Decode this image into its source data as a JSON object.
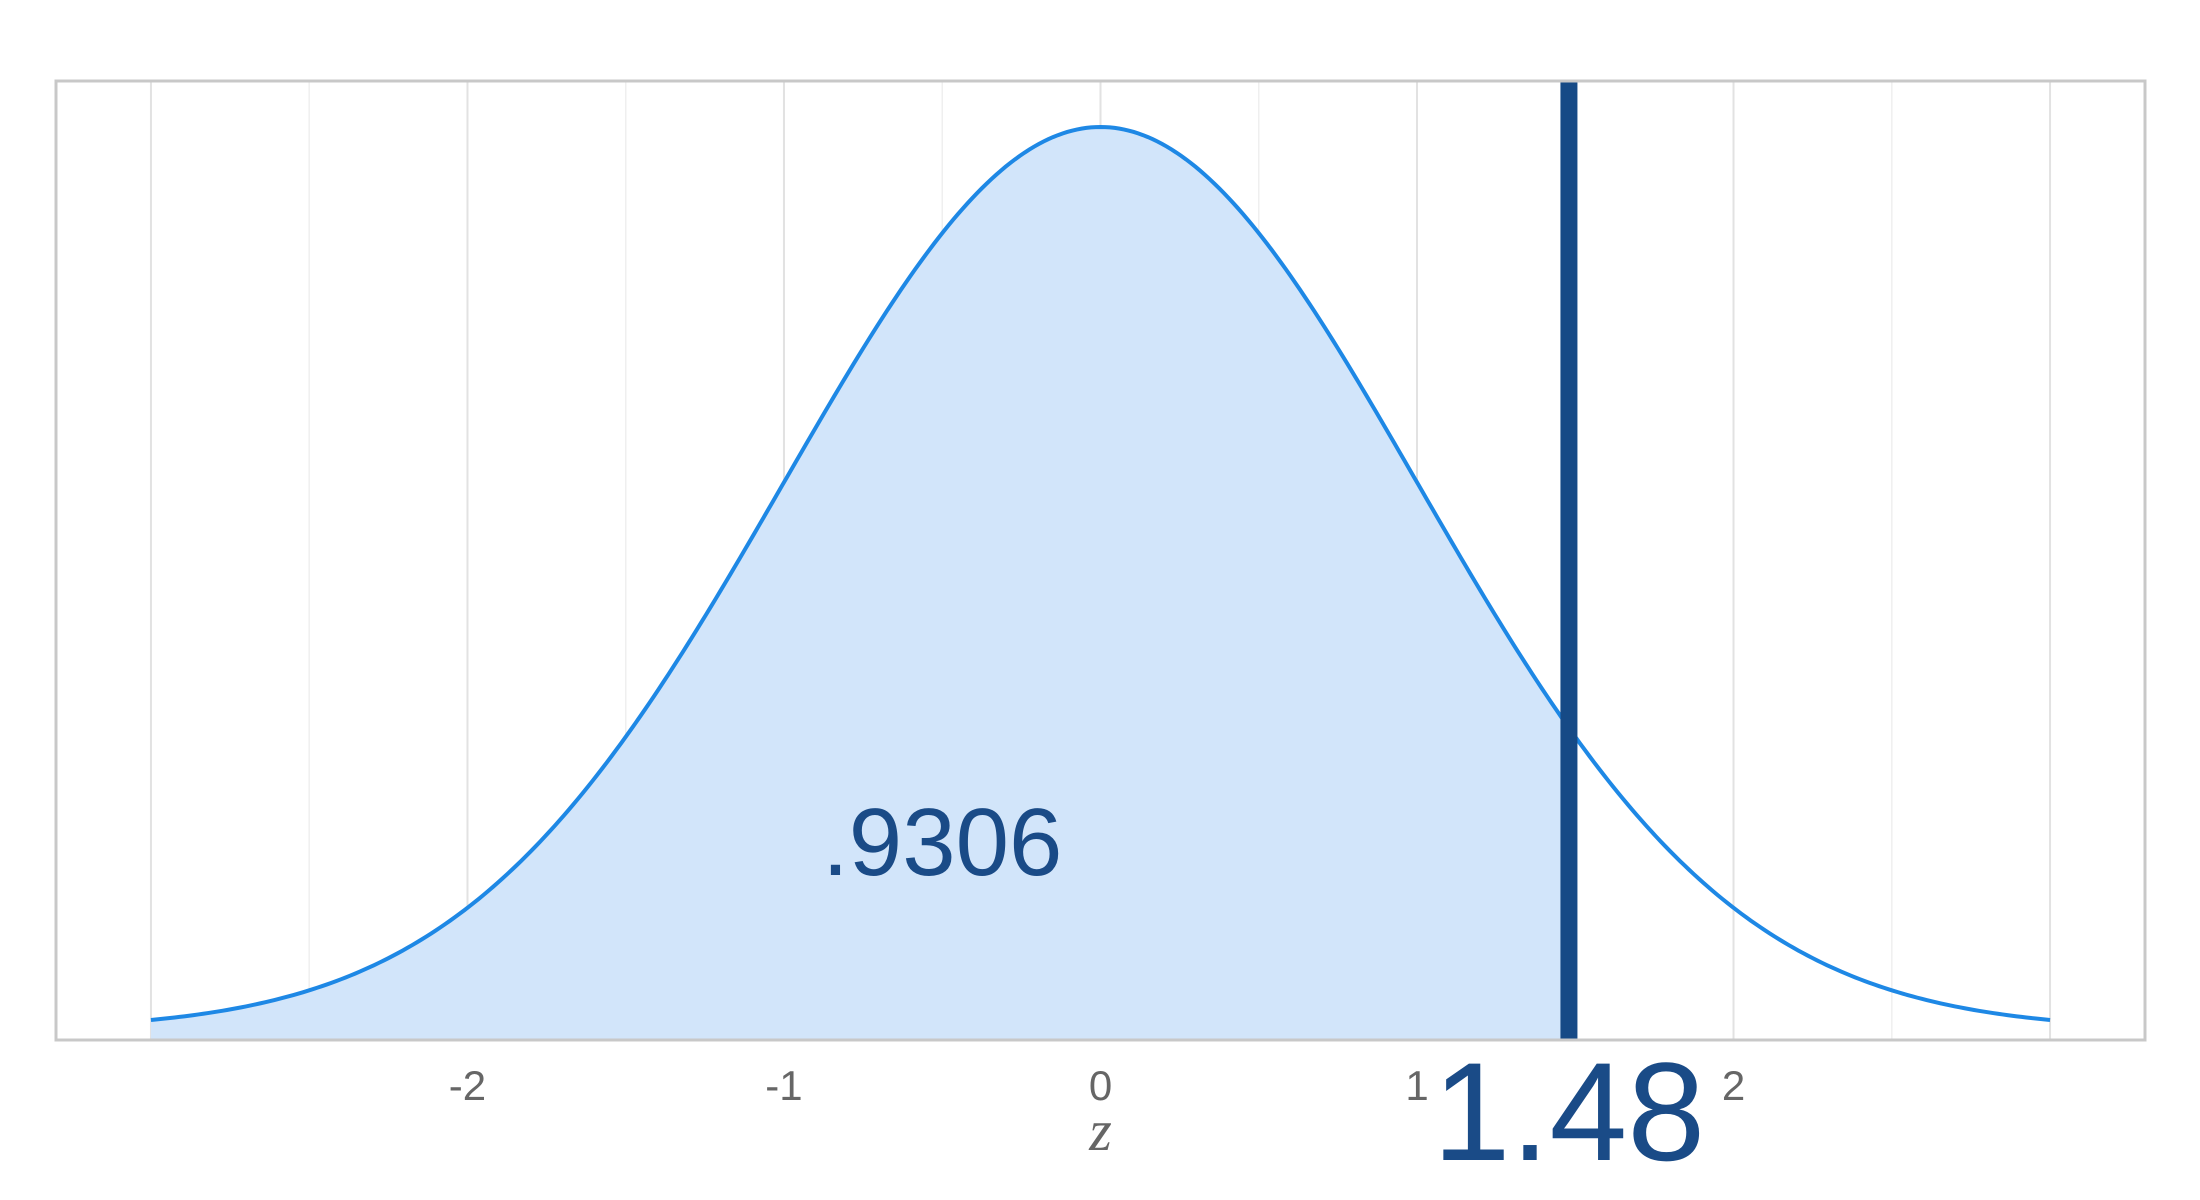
{
  "chart_data": {
    "type": "area",
    "distribution": "standard normal",
    "xlabel": "z",
    "x_ticks": [
      -2,
      -1,
      0,
      1,
      2
    ],
    "x_tick_labels": [
      "-2",
      "-1",
      "0",
      "1",
      "2"
    ],
    "xlim": [
      -3.3,
      3.3
    ],
    "curve_x_range": [
      -3,
      3
    ],
    "cutoff": 1.48,
    "cutoff_label": "1.48",
    "shaded_area": 0.9306,
    "shaded_area_label": ".9306",
    "shaded_region": "left of cutoff",
    "grid": true,
    "y_axis_visible": false
  },
  "colors": {
    "curve": "#1e88e5",
    "fill": "#d2e5fa",
    "cutoff_line": "#164a86",
    "labels": "#1a4b87",
    "panel_border": "#c8c8c8",
    "gridline": "#e6e6e6",
    "tick_text": "#666666"
  }
}
